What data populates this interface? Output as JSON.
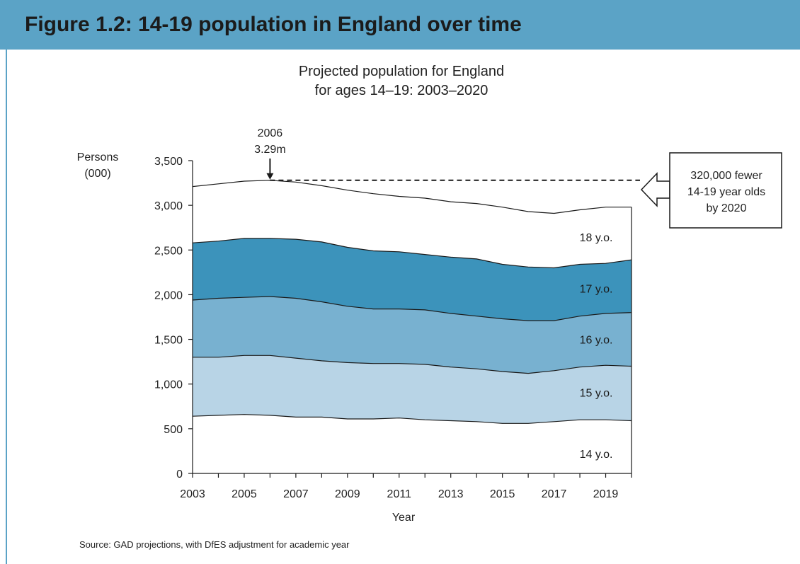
{
  "header": {
    "title": "Figure 1.2: 14-19 population in England over time"
  },
  "chart_data": {
    "type": "area",
    "stacked": true,
    "title_lines": [
      "Projected population for England",
      "for ages 14–19: 2003–2020"
    ],
    "xlabel": "Year",
    "ylabel_lines": [
      "Persons",
      "(000)"
    ],
    "xlim": [
      2003,
      2020
    ],
    "ylim": [
      0,
      3500
    ],
    "x_ticks": [
      2003,
      2005,
      2007,
      2009,
      2011,
      2013,
      2015,
      2017,
      2019
    ],
    "y_ticks": [
      "0",
      "500",
      "1,000",
      "1,500",
      "2,000",
      "2,500",
      "3,000",
      "3,500"
    ],
    "y_tick_values": [
      0,
      500,
      1000,
      1500,
      2000,
      2500,
      3000,
      3500
    ],
    "x": [
      2003,
      2004,
      2005,
      2006,
      2007,
      2008,
      2009,
      2010,
      2011,
      2012,
      2013,
      2014,
      2015,
      2016,
      2017,
      2018,
      2019,
      2020
    ],
    "series": [
      {
        "name": "14 y.o.",
        "color": "#ffffff",
        "values": [
          640,
          650,
          660,
          650,
          630,
          630,
          610,
          610,
          620,
          600,
          590,
          580,
          560,
          560,
          580,
          600,
          600,
          590
        ]
      },
      {
        "name": "15 y.o.",
        "color": "#b8d4e6",
        "values": [
          660,
          650,
          660,
          670,
          660,
          630,
          630,
          620,
          610,
          620,
          600,
          590,
          580,
          560,
          570,
          590,
          610,
          610
        ]
      },
      {
        "name": "16 y.o.",
        "color": "#78b1d0",
        "values": [
          640,
          660,
          650,
          660,
          670,
          660,
          630,
          610,
          610,
          610,
          600,
          590,
          590,
          590,
          560,
          570,
          580,
          600
        ]
      },
      {
        "name": "17 y.o.",
        "color": "#3c93bb",
        "values": [
          640,
          640,
          660,
          650,
          660,
          670,
          660,
          650,
          640,
          620,
          630,
          640,
          610,
          600,
          590,
          580,
          560,
          590
        ]
      },
      {
        "name": "18 y.o.",
        "color": "#ffffff",
        "values": [
          630,
          640,
          640,
          650,
          640,
          630,
          640,
          640,
          620,
          630,
          620,
          620,
          640,
          620,
          610,
          610,
          630,
          590
        ]
      }
    ],
    "annotations": {
      "peak_year": "2006",
      "peak_value": "3.29m",
      "callout_lines": [
        "320,000 fewer",
        "14-19 year olds",
        "by 2020"
      ]
    }
  },
  "footer": {
    "source": "Source: GAD projections, with DfES adjustment for academic year"
  }
}
